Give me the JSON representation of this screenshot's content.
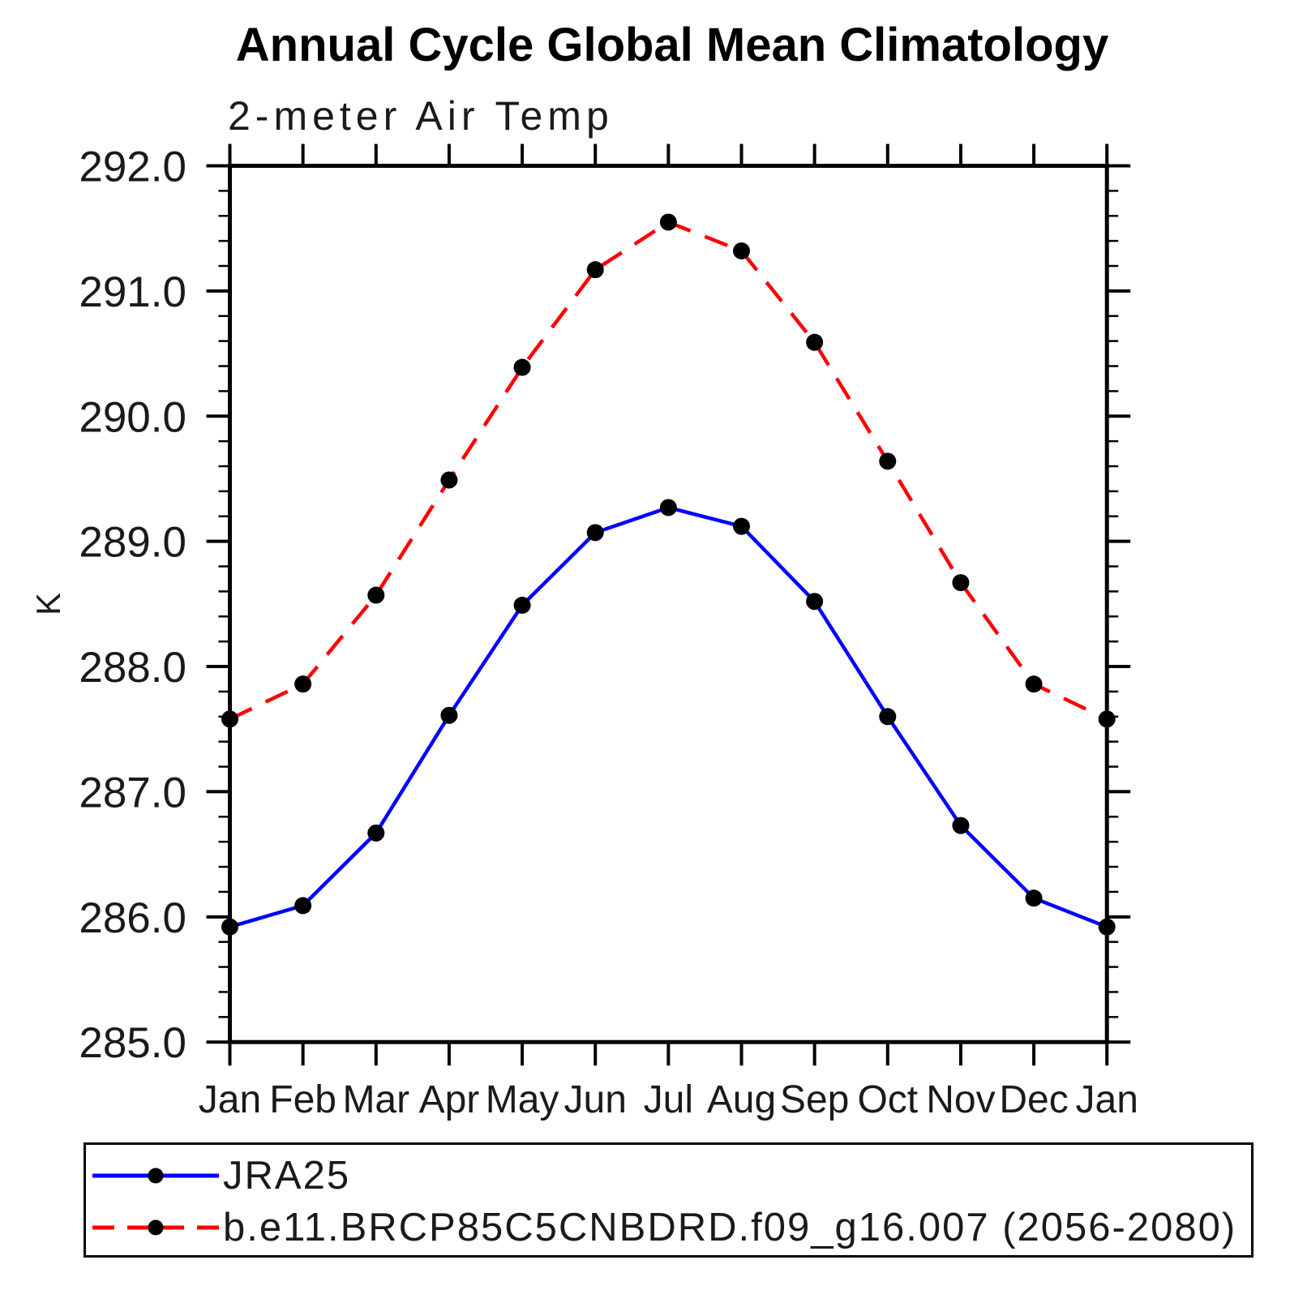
{
  "title": "Annual Cycle Global Mean Climatology",
  "chart_data": {
    "type": "line",
    "title": "Annual Cycle Global Mean Climatology",
    "subtitle": "2-meter Air Temp",
    "ylabel": "K",
    "xlabel": "",
    "ylim": [
      285.0,
      292.0
    ],
    "ytick_major_interval": 1.0,
    "ytick_minor_interval": 0.2,
    "ytick_labels": [
      "292.0",
      "291.0",
      "290.0",
      "289.0",
      "288.0",
      "287.0",
      "286.0",
      "285.0"
    ],
    "categories": [
      "Jan",
      "Feb",
      "Mar",
      "Apr",
      "May",
      "Jun",
      "Jul",
      "Aug",
      "Sep",
      "Oct",
      "Nov",
      "Dec",
      "Jan"
    ],
    "grid": false,
    "legend_position": "bottom-left box",
    "marker_color": "#000000",
    "series": [
      {
        "name": "JRA25",
        "color": "#0000ff",
        "line_style": "solid",
        "marker": "filled-circle",
        "values": [
          285.92,
          286.09,
          286.67,
          287.61,
          288.49,
          289.07,
          289.27,
          289.12,
          288.52,
          287.6,
          286.73,
          286.15,
          285.92
        ]
      },
      {
        "name": "b.e11.BRCP85C5CNBDRD.f09_g16.007 (2056-2080)",
        "color": "#ff0000",
        "line_style": "dashed",
        "marker": "filled-circle",
        "values": [
          287.58,
          287.86,
          288.57,
          289.49,
          290.39,
          291.17,
          291.55,
          291.32,
          290.59,
          289.64,
          288.67,
          287.86,
          287.58
        ]
      }
    ]
  },
  "colors": {
    "background": "#ffffff",
    "axis": "#000000",
    "text": "#1a1a1a",
    "series_1": "#0000ff",
    "series_2": "#ff0000",
    "marker": "#000000"
  }
}
